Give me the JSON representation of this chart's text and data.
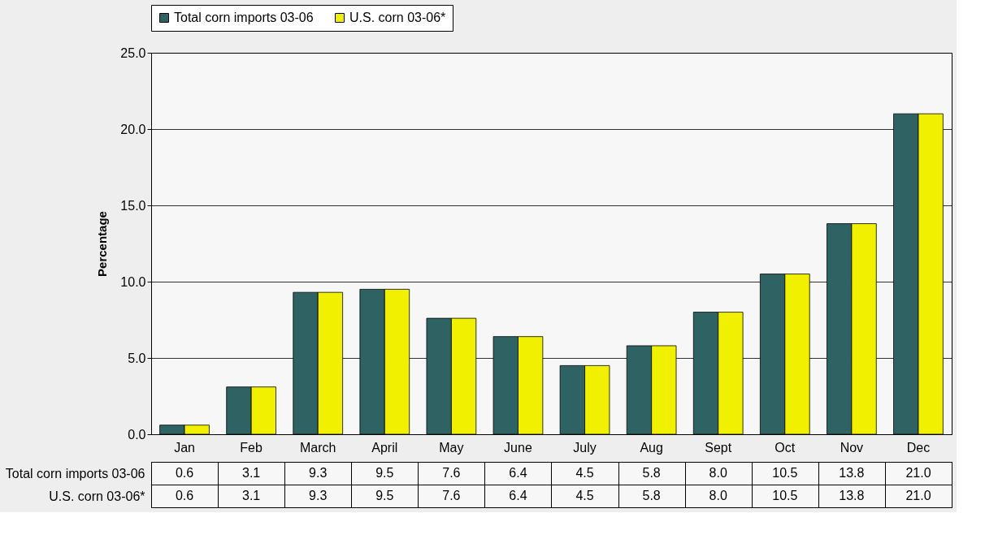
{
  "chart_data": {
    "type": "bar",
    "ylabel": "Percentage",
    "categories": [
      "Jan",
      "Feb",
      "March",
      "April",
      "May",
      "June",
      "July",
      "Aug",
      "Sept",
      "Oct",
      "Nov",
      "Dec"
    ],
    "series": [
      {
        "name": "Total corn imports 03-06",
        "color": "#2f6363",
        "values": [
          0.6,
          3.1,
          9.3,
          9.5,
          7.6,
          6.4,
          4.5,
          5.8,
          8.0,
          10.5,
          13.8,
          21.0
        ],
        "value_labels": [
          "0.6",
          "3.1",
          "9.3",
          "9.5",
          "7.6",
          "6.4",
          "4.5",
          "5.8",
          "8.0",
          "10.5",
          "13.8",
          "21.0"
        ]
      },
      {
        "name": "U.S. corn 03-06*",
        "color": "#f0f000",
        "values": [
          0.6,
          3.1,
          9.3,
          9.5,
          7.6,
          6.4,
          4.5,
          5.8,
          8.0,
          10.5,
          13.8,
          21.0
        ],
        "value_labels": [
          "0.6",
          "3.1",
          "9.3",
          "9.5",
          "7.6",
          "6.4",
          "4.5",
          "5.8",
          "8.0",
          "10.5",
          "13.8",
          "21.0"
        ]
      }
    ],
    "ylim": [
      0,
      25
    ],
    "yticks": [
      {
        "value": 0,
        "label": "0.0"
      },
      {
        "value": 5,
        "label": "5.0"
      },
      {
        "value": 10,
        "label": "10.0"
      },
      {
        "value": 15,
        "label": "15.0"
      },
      {
        "value": 20,
        "label": "20.0"
      },
      {
        "value": 25,
        "label": "25.0"
      }
    ],
    "grid": "y",
    "legend": "top"
  }
}
